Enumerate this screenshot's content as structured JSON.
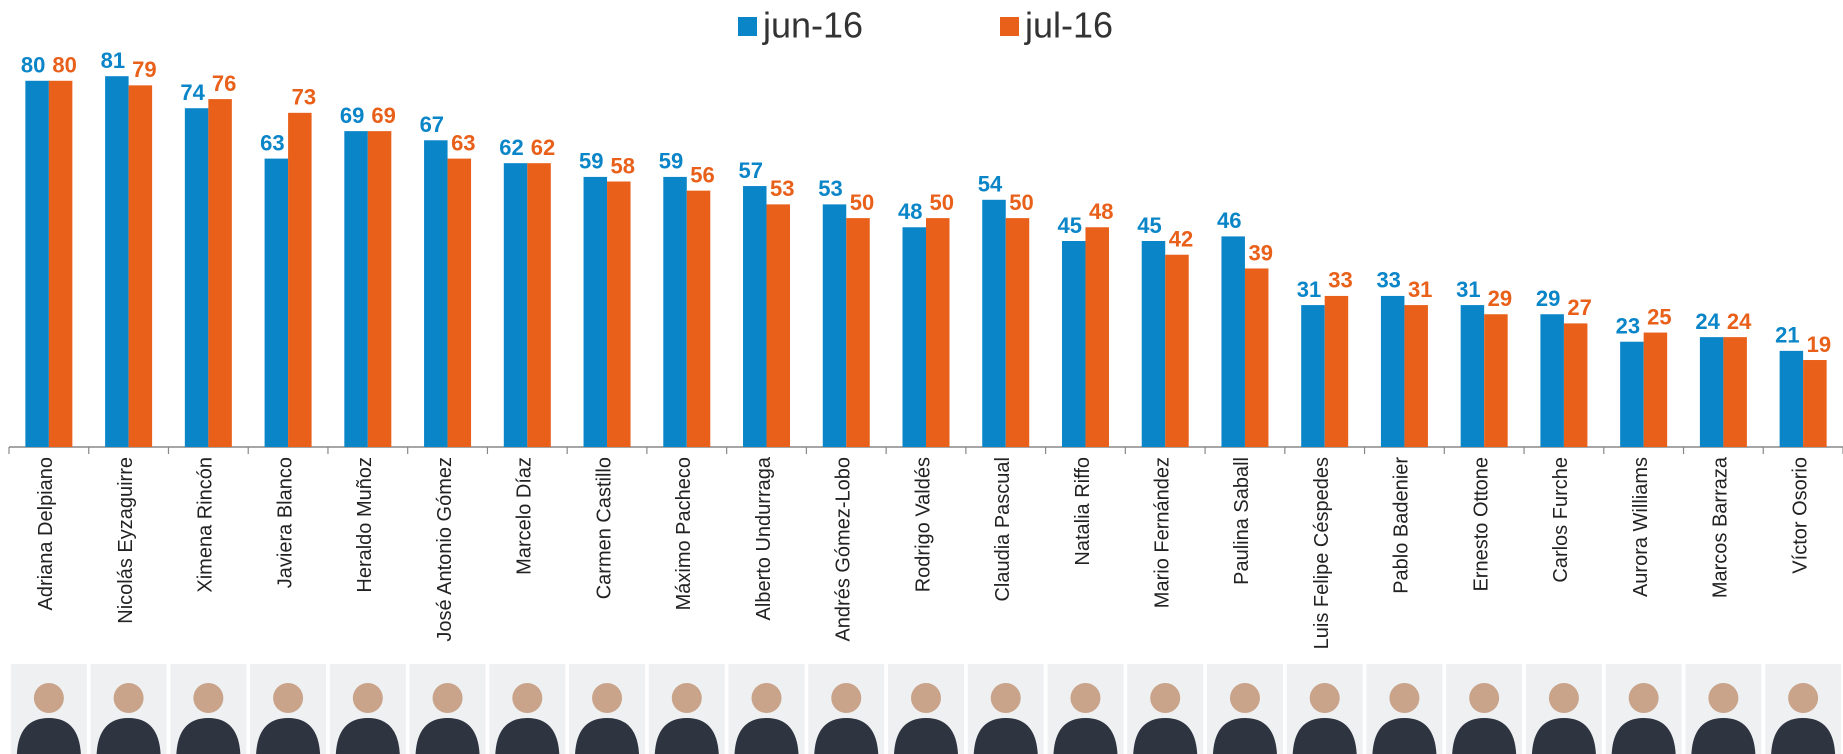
{
  "chart_data": {
    "type": "bar",
    "categories": [
      "Adriana Delpiano",
      "Nicolás Eyzaguirre",
      "Ximena Rincón",
      "Javiera Blanco",
      "Heraldo Muñoz",
      "José Antonio Gómez",
      "Marcelo Díaz",
      "Carmen Castillo",
      "Máximo Pacheco",
      "Alberto Undurraga",
      "Andrés Gómez-Lobo",
      "Rodrigo Valdés",
      "Claudia Pascual",
      "Natalia Riffo",
      "Mario Fernández",
      "Paulina Saball",
      "Luis Felipe Céspedes",
      "Pablo Badenier",
      "Ernesto Ottone",
      "Carlos Furche",
      "Aurora Williams",
      "Marcos Barraza",
      "Víctor Osorio"
    ],
    "series": [
      {
        "name": "jun-16",
        "color": "#0a85c8",
        "values": [
          80,
          81,
          74,
          63,
          69,
          67,
          62,
          59,
          59,
          57,
          53,
          48,
          54,
          45,
          45,
          46,
          31,
          33,
          31,
          29,
          23,
          24,
          21
        ]
      },
      {
        "name": "jul-16",
        "color": "#e8601a",
        "values": [
          80,
          79,
          76,
          73,
          69,
          63,
          62,
          58,
          56,
          53,
          50,
          50,
          50,
          48,
          42,
          39,
          33,
          31,
          29,
          27,
          25,
          24,
          19
        ]
      }
    ],
    "ylim": [
      0,
      90
    ]
  }
}
